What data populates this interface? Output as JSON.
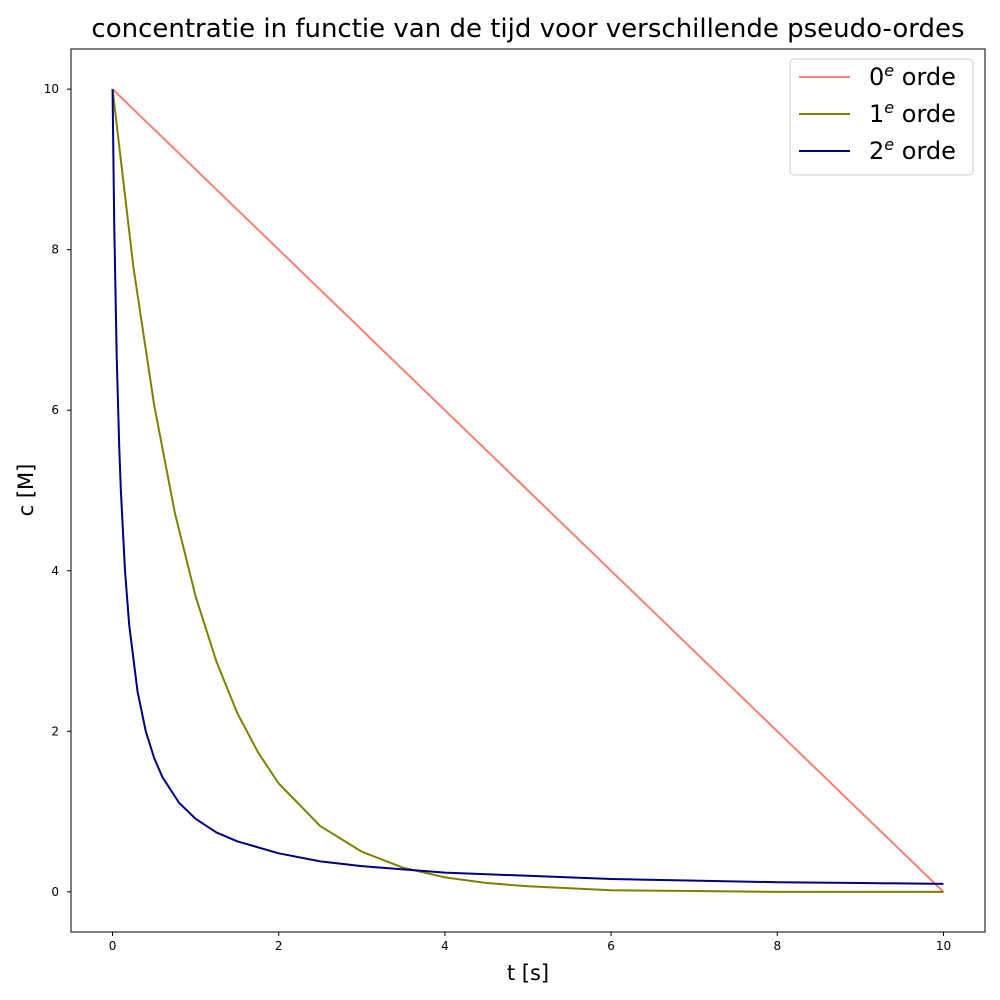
{
  "chart_data": {
    "type": "line",
    "title": "concentratie in functie van de tijd voor verschillende pseudo-ordes",
    "xlabel": "t [s]",
    "ylabel": "c [M]",
    "xlim": [
      -0.5,
      10.5
    ],
    "ylim": [
      -0.5,
      10.5
    ],
    "xticks": [
      0,
      2,
      4,
      6,
      8,
      10
    ],
    "yticks": [
      0,
      2,
      4,
      6,
      8,
      10
    ],
    "grid": false,
    "legend_position": "top-right",
    "series": [
      {
        "name": "0e orde",
        "name_base": "0",
        "name_sup": "e",
        "name_rest": " orde",
        "color": "#fa8072",
        "x": [
          0,
          10
        ],
        "y": [
          10,
          0
        ]
      },
      {
        "name": "1e orde",
        "name_base": "1",
        "name_sup": "e",
        "name_rest": " orde",
        "color": "#808000",
        "x": [
          0,
          0.25,
          0.5,
          0.75,
          1,
          1.25,
          1.5,
          1.75,
          2,
          2.5,
          3,
          3.5,
          4,
          4.5,
          5,
          6,
          7,
          8,
          9,
          10
        ],
        "y": [
          10,
          7.79,
          6.07,
          4.72,
          3.68,
          2.87,
          2.23,
          1.74,
          1.35,
          0.82,
          0.5,
          0.3,
          0.18,
          0.11,
          0.07,
          0.02,
          0.01,
          0.0,
          0.0,
          0.0
        ]
      },
      {
        "name": "2e orde",
        "name_base": "2",
        "name_sup": "e",
        "name_rest": " orde",
        "color": "#000080",
        "x": [
          0,
          0.02,
          0.05,
          0.08,
          0.1,
          0.15,
          0.2,
          0.3,
          0.4,
          0.5,
          0.6,
          0.8,
          1,
          1.25,
          1.5,
          2,
          2.5,
          3,
          3.5,
          4,
          5,
          6,
          7,
          8,
          9,
          10
        ],
        "y": [
          10,
          8.33,
          6.67,
          5.56,
          5.0,
          4.0,
          3.33,
          2.5,
          2.0,
          1.67,
          1.43,
          1.11,
          0.91,
          0.74,
          0.63,
          0.48,
          0.38,
          0.32,
          0.28,
          0.24,
          0.2,
          0.16,
          0.14,
          0.12,
          0.11,
          0.1
        ]
      }
    ]
  }
}
